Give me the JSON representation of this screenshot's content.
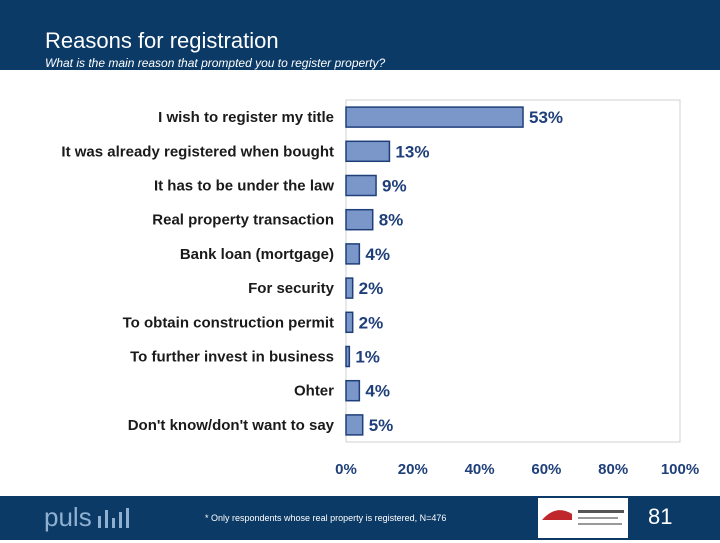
{
  "header": {
    "title": "Reasons for registration",
    "subtitle": "What is the main reason that prompted you to register property?"
  },
  "chart_data": {
    "type": "bar",
    "orientation": "horizontal",
    "categories": [
      "I wish to register my title",
      "It was already registered when bought",
      "It has to be under the law",
      "Real property transaction",
      "Bank loan (mortgage)",
      "For security",
      "To obtain construction permit",
      "To further invest in business",
      "Ohter",
      "Don't know/don't want to say"
    ],
    "values": [
      53,
      13,
      9,
      8,
      4,
      2,
      2,
      1,
      4,
      5
    ],
    "value_labels": [
      "53%",
      "13%",
      "9%",
      "8%",
      "4%",
      "2%",
      "2%",
      "1%",
      "4%",
      "5%"
    ],
    "xlim": [
      0,
      100
    ],
    "xticks": [
      0,
      20,
      40,
      60,
      80,
      100
    ],
    "xtick_labels": [
      "0%",
      "20%",
      "40%",
      "60%",
      "80%",
      "100%"
    ],
    "bar_color": "#7b96c8",
    "bar_edge_color": "#1f3f7a",
    "grid": false
  },
  "footer": {
    "logo": "puls",
    "footnote": "* Only respondents whose real property is registered, N=476",
    "page_number": "81"
  },
  "colors": {
    "header_bg": "#0c3a66",
    "footer_bg": "#0c3a66"
  }
}
